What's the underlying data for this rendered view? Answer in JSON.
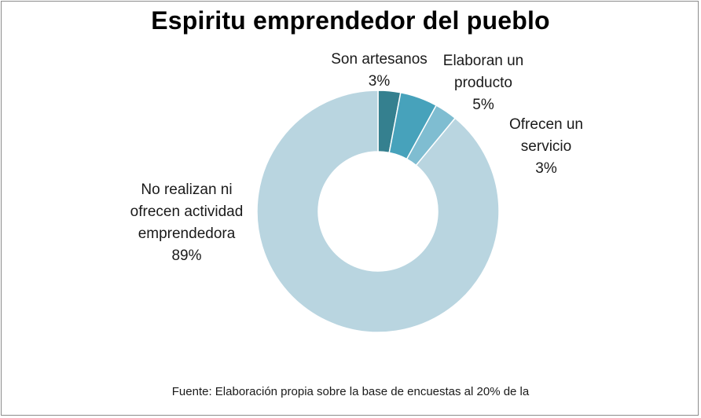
{
  "chart_data": {
    "type": "pie",
    "variant": "donut",
    "title": "Espiritu emprendedor del pueblo",
    "slices": [
      {
        "label": "Son artesanos",
        "value": 3,
        "display": "3%",
        "color": "#35808f"
      },
      {
        "label": "Elaboran un producto",
        "value": 5,
        "display": "5%",
        "color": "#47a2bb"
      },
      {
        "label": "Ofrecen un servicio",
        "value": 3,
        "display": "3%",
        "color": "#7fbdd1"
      },
      {
        "label": "No realizan ni ofrecen actividad emprendedora",
        "value": 89,
        "display": "89%",
        "color": "#b9d5e0"
      }
    ],
    "legend": "none"
  },
  "labels": {
    "artesanos": "Son artesanos\n3%",
    "producto": "Elaboran un\nproducto\n5%",
    "servicio": "Ofrecen un\nservicio\n3%",
    "no_emprendedor": "No realizan ni\nofrecen actividad\nemprendedora\n89%"
  },
  "source": "Fuente: Elaboración propia sobre la base de encuestas al 20%  de la"
}
